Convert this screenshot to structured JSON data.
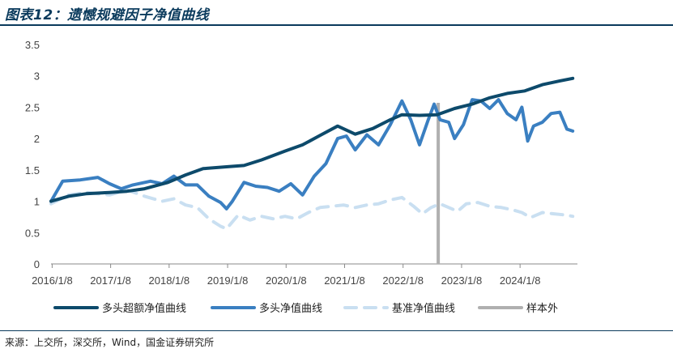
{
  "figure": {
    "title": "图表12：遗憾规避因子净值曲线",
    "source": "来源：上交所，深交所，Wind，国金证券研究所"
  },
  "colors": {
    "accent": "#0a3a5c",
    "series1": "#0d4a6b",
    "series2": "#3a7fc1",
    "series3": "#c9dff1",
    "outsample": "#b0b0b0"
  },
  "chart_data": {
    "type": "line",
    "xlabel": "",
    "ylabel": "",
    "xlim": [
      "2016/1/8",
      "2025/1/1"
    ],
    "ylim": [
      0,
      3.5
    ],
    "y_ticks": [
      "0",
      "0.5",
      "1",
      "1.5",
      "2",
      "2.5",
      "3",
      "3.5"
    ],
    "x_ticks": [
      "2016/1/8",
      "2017/1/8",
      "2018/1/8",
      "2019/1/8",
      "2020/1/8",
      "2021/1/8",
      "2022/1/8",
      "2023/1/8",
      "2024/1/8"
    ],
    "grid": false,
    "legend_position": "bottom",
    "out_of_sample_start": 2022.62,
    "series": [
      {
        "name": "多头超额净值曲线",
        "style": "solid",
        "points": [
          [
            2016.0,
            1.0
          ],
          [
            2016.3,
            1.08
          ],
          [
            2016.6,
            1.12
          ],
          [
            2017.0,
            1.14
          ],
          [
            2017.3,
            1.16
          ],
          [
            2017.6,
            1.2
          ],
          [
            2018.0,
            1.3
          ],
          [
            2018.3,
            1.42
          ],
          [
            2018.6,
            1.52
          ],
          [
            2019.0,
            1.55
          ],
          [
            2019.3,
            1.57
          ],
          [
            2019.6,
            1.66
          ],
          [
            2020.0,
            1.8
          ],
          [
            2020.3,
            1.9
          ],
          [
            2020.6,
            2.05
          ],
          [
            2020.9,
            2.2
          ],
          [
            2021.2,
            2.07
          ],
          [
            2021.5,
            2.16
          ],
          [
            2021.8,
            2.3
          ],
          [
            2022.0,
            2.38
          ],
          [
            2022.3,
            2.37
          ],
          [
            2022.6,
            2.38
          ],
          [
            2022.9,
            2.48
          ],
          [
            2023.2,
            2.55
          ],
          [
            2023.5,
            2.65
          ],
          [
            2023.8,
            2.72
          ],
          [
            2024.1,
            2.76
          ],
          [
            2024.4,
            2.86
          ],
          [
            2024.7,
            2.92
          ],
          [
            2024.92,
            2.96
          ]
        ]
      },
      {
        "name": "多头净值曲线",
        "style": "solid",
        "points": [
          [
            2016.0,
            1.0
          ],
          [
            2016.2,
            1.32
          ],
          [
            2016.5,
            1.34
          ],
          [
            2016.8,
            1.38
          ],
          [
            2017.0,
            1.28
          ],
          [
            2017.2,
            1.2
          ],
          [
            2017.4,
            1.26
          ],
          [
            2017.7,
            1.32
          ],
          [
            2017.9,
            1.28
          ],
          [
            2018.1,
            1.4
          ],
          [
            2018.3,
            1.26
          ],
          [
            2018.5,
            1.26
          ],
          [
            2018.7,
            1.08
          ],
          [
            2018.9,
            0.98
          ],
          [
            2019.0,
            0.88
          ],
          [
            2019.1,
            1.0
          ],
          [
            2019.3,
            1.3
          ],
          [
            2019.5,
            1.24
          ],
          [
            2019.7,
            1.22
          ],
          [
            2019.9,
            1.16
          ],
          [
            2020.1,
            1.28
          ],
          [
            2020.3,
            1.1
          ],
          [
            2020.5,
            1.4
          ],
          [
            2020.7,
            1.6
          ],
          [
            2020.9,
            2.0
          ],
          [
            2021.05,
            2.04
          ],
          [
            2021.2,
            1.82
          ],
          [
            2021.4,
            2.06
          ],
          [
            2021.6,
            1.9
          ],
          [
            2021.8,
            2.22
          ],
          [
            2022.0,
            2.6
          ],
          [
            2022.15,
            2.3
          ],
          [
            2022.3,
            1.9
          ],
          [
            2022.45,
            2.3
          ],
          [
            2022.55,
            2.55
          ],
          [
            2022.65,
            2.3
          ],
          [
            2022.8,
            2.26
          ],
          [
            2022.9,
            2.0
          ],
          [
            2023.05,
            2.22
          ],
          [
            2023.2,
            2.62
          ],
          [
            2023.35,
            2.6
          ],
          [
            2023.5,
            2.48
          ],
          [
            2023.65,
            2.62
          ],
          [
            2023.8,
            2.4
          ],
          [
            2023.95,
            2.3
          ],
          [
            2024.05,
            2.5
          ],
          [
            2024.15,
            1.96
          ],
          [
            2024.25,
            2.2
          ],
          [
            2024.4,
            2.26
          ],
          [
            2024.55,
            2.4
          ],
          [
            2024.7,
            2.42
          ],
          [
            2024.82,
            2.15
          ],
          [
            2024.92,
            2.12
          ]
        ]
      },
      {
        "name": "基准净值曲线",
        "style": "dashed",
        "points": [
          [
            2016.0,
            0.96
          ],
          [
            2016.3,
            1.1
          ],
          [
            2016.6,
            1.14
          ],
          [
            2017.0,
            1.1
          ],
          [
            2017.3,
            1.18
          ],
          [
            2017.6,
            1.08
          ],
          [
            2017.9,
            1.0
          ],
          [
            2018.1,
            1.04
          ],
          [
            2018.3,
            0.94
          ],
          [
            2018.5,
            0.9
          ],
          [
            2018.7,
            0.72
          ],
          [
            2018.9,
            0.6
          ],
          [
            2019.0,
            0.56
          ],
          [
            2019.2,
            0.78
          ],
          [
            2019.4,
            0.7
          ],
          [
            2019.6,
            0.76
          ],
          [
            2019.8,
            0.72
          ],
          [
            2020.0,
            0.76
          ],
          [
            2020.2,
            0.72
          ],
          [
            2020.4,
            0.82
          ],
          [
            2020.6,
            0.9
          ],
          [
            2020.8,
            0.92
          ],
          [
            2021.0,
            0.94
          ],
          [
            2021.2,
            0.9
          ],
          [
            2021.4,
            0.94
          ],
          [
            2021.6,
            0.96
          ],
          [
            2021.8,
            1.02
          ],
          [
            2022.0,
            1.06
          ],
          [
            2022.2,
            0.92
          ],
          [
            2022.35,
            0.8
          ],
          [
            2022.5,
            0.9
          ],
          [
            2022.65,
            0.96
          ],
          [
            2022.8,
            0.9
          ],
          [
            2022.95,
            0.84
          ],
          [
            2023.1,
            0.96
          ],
          [
            2023.3,
            0.98
          ],
          [
            2023.5,
            0.92
          ],
          [
            2023.7,
            0.9
          ],
          [
            2023.9,
            0.86
          ],
          [
            2024.05,
            0.82
          ],
          [
            2024.2,
            0.74
          ],
          [
            2024.4,
            0.82
          ],
          [
            2024.6,
            0.8
          ],
          [
            2024.8,
            0.78
          ],
          [
            2024.92,
            0.76
          ]
        ]
      }
    ],
    "legend": [
      {
        "name": "多头超额净值曲线",
        "style": "solid"
      },
      {
        "name": "多头净值曲线",
        "style": "solid"
      },
      {
        "name": "基准净值曲线",
        "style": "dashed"
      },
      {
        "name": "样本外",
        "style": "solid"
      }
    ]
  }
}
